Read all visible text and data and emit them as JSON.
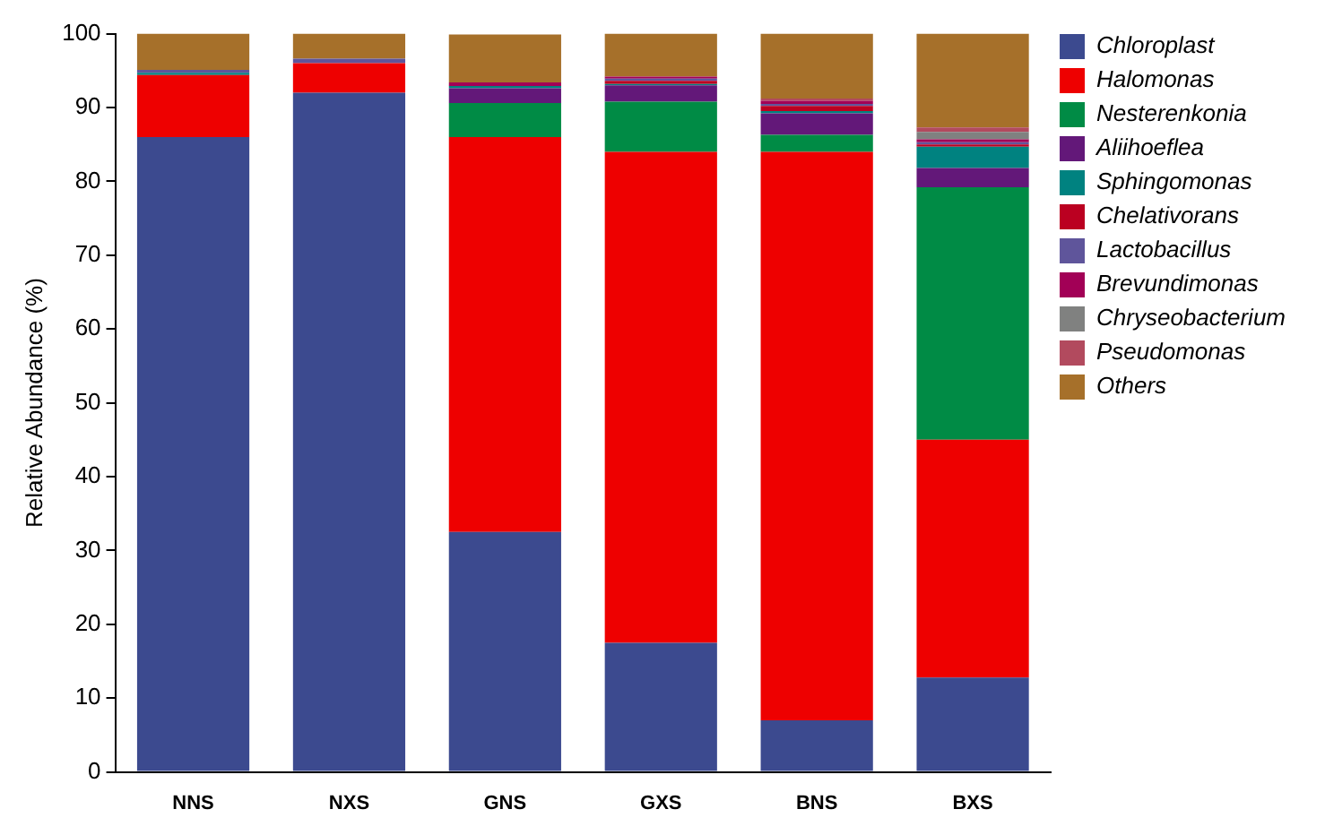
{
  "chart_data": {
    "type": "bar",
    "stacked": true,
    "ylabel": "Relative Abundance (%)",
    "categories": [
      "NNS",
      "NXS",
      "GNS",
      "GXS",
      "BNS",
      "BXS"
    ],
    "ylim": [
      0,
      100
    ],
    "yticks": [
      0,
      10,
      20,
      30,
      40,
      50,
      60,
      70,
      80,
      90,
      100
    ],
    "grid": false,
    "legend": "right",
    "series": [
      {
        "name": "Chloroplast",
        "color": "#3c4a8f",
        "values": [
          86,
          92,
          32.5,
          17.5,
          7,
          12.8
        ]
      },
      {
        "name": "Halomonas",
        "color": "#ee0000",
        "values": [
          8.4,
          4,
          53.5,
          66.5,
          77,
          32.2
        ]
      },
      {
        "name": "Nesterenkonia",
        "color": "#008b45",
        "values": [
          0,
          0,
          4.6,
          6.8,
          2.3,
          34.2
        ]
      },
      {
        "name": "Aliihoeflea",
        "color": "#631879",
        "values": [
          0,
          0,
          2,
          2.2,
          2.9,
          2.6
        ]
      },
      {
        "name": "Sphingomonas",
        "color": "#008280",
        "values": [
          0.3,
          0,
          0.3,
          0.2,
          0.3,
          2.9
        ]
      },
      {
        "name": "Chelativorans",
        "color": "#bb0021",
        "values": [
          0,
          0,
          0,
          0.4,
          0.7,
          0.3
        ]
      },
      {
        "name": "Lactobacillus",
        "color": "#5f559b",
        "values": [
          0.4,
          0.6,
          0,
          0.3,
          0.3,
          0.3
        ]
      },
      {
        "name": "Brevundimonas",
        "color": "#a20056",
        "values": [
          0,
          0,
          0.5,
          0.3,
          0.4,
          0.4
        ]
      },
      {
        "name": "Chryseobacterium",
        "color": "#808180",
        "values": [
          0,
          0,
          0,
          0,
          0,
          1
        ]
      },
      {
        "name": "Pseudomonas",
        "color": "#b24a5e",
        "values": [
          0,
          0,
          0,
          0,
          0.3,
          0.6
        ]
      },
      {
        "name": "Others",
        "color": "#a6702a",
        "values": [
          4.9,
          3.4,
          6.5,
          5.8,
          8.8,
          12.7
        ]
      }
    ]
  }
}
